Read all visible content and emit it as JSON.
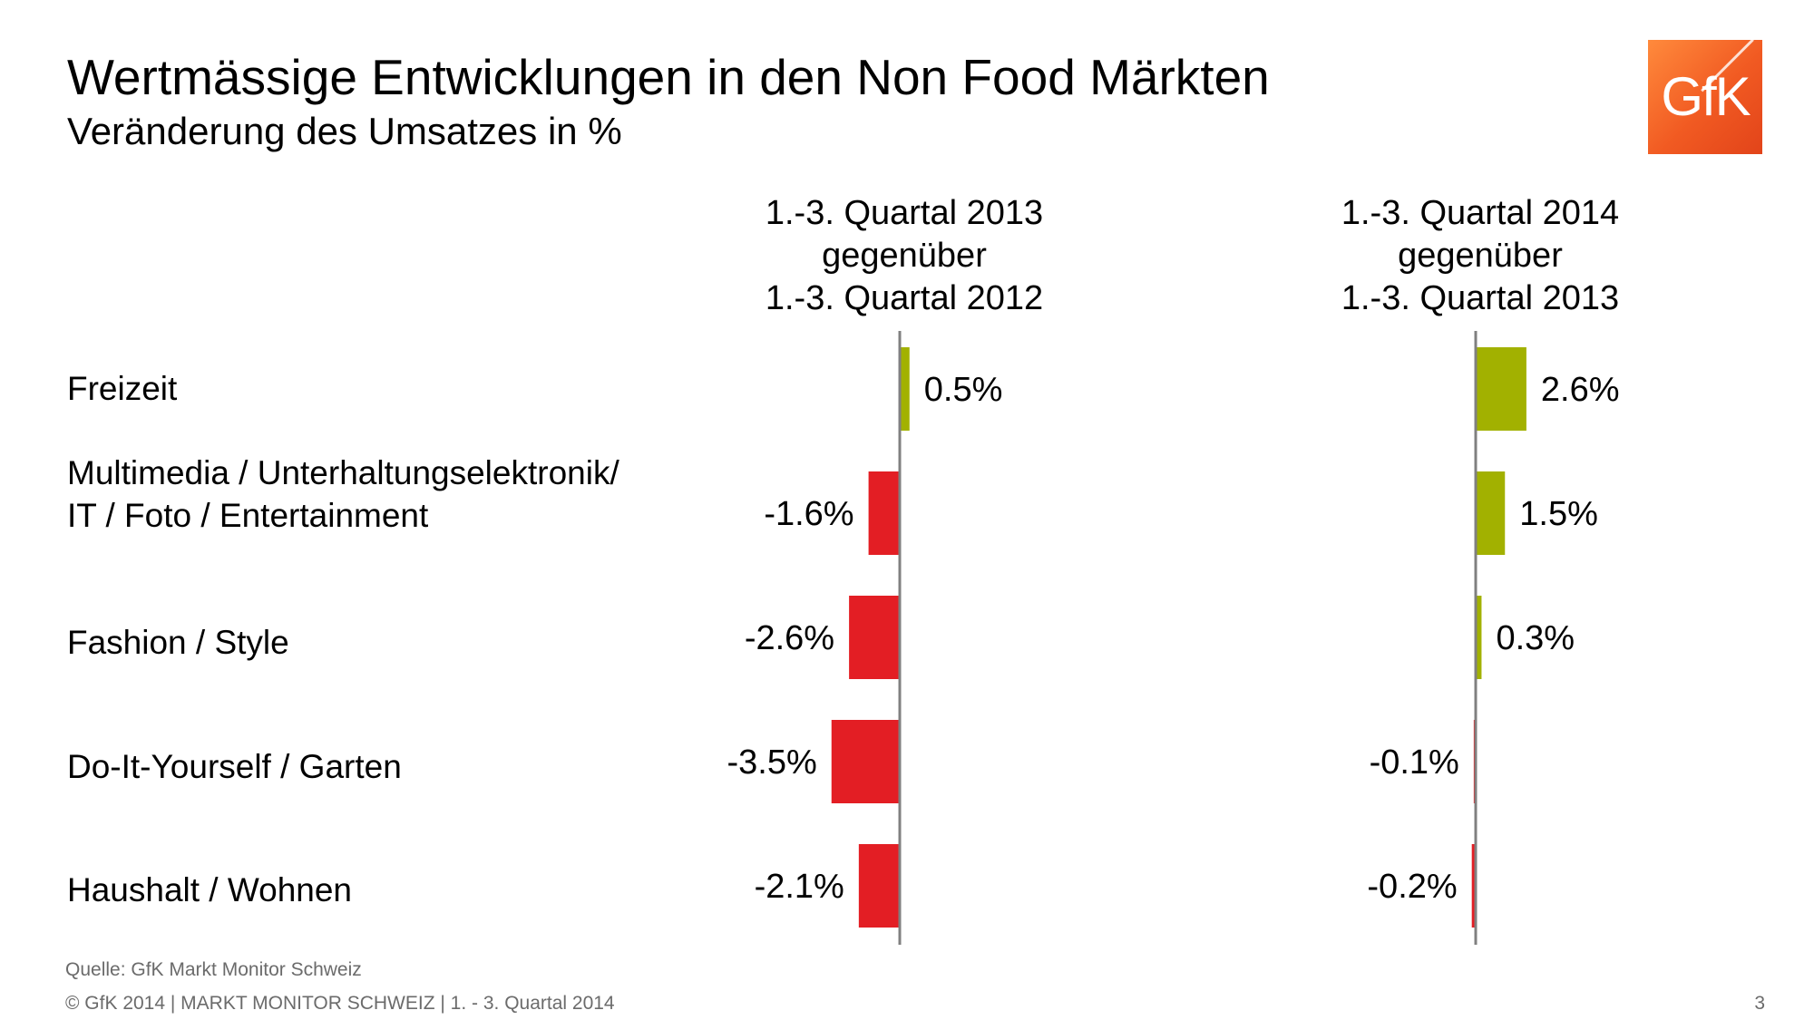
{
  "header": {
    "title": "Wertmässige Entwicklungen in den Non Food Märkten",
    "subtitle": "Veränderung des Umsatzes in %",
    "logo_text": "GfK"
  },
  "chart_data": {
    "type": "bar",
    "orientation": "horizontal",
    "categories": [
      [
        "Freizeit"
      ],
      [
        "Multimedia / Unterhaltungselektronik/",
        "IT / Foto / Entertainment"
      ],
      [
        "Fashion / Style"
      ],
      [
        "Do-It-Yourself / Garten"
      ],
      [
        "Haushalt / Wohnen"
      ]
    ],
    "series": [
      {
        "name": [
          "1.-3. Quartal 2013",
          "gegenüber",
          "1.-3. Quartal 2012"
        ],
        "values": [
          0.5,
          -1.6,
          -2.6,
          -3.5,
          -2.1
        ],
        "labels": [
          "0.5%",
          "-1.6%",
          "-2.6%",
          "-3.5%",
          "-2.1%"
        ]
      },
      {
        "name": [
          "1.-3. Quartal 2014",
          "gegenüber",
          "1.-3. Quartal 2013"
        ],
        "values": [
          2.6,
          1.5,
          0.3,
          -0.1,
          -0.2
        ],
        "labels": [
          "2.6%",
          "1.5%",
          "0.3%",
          "-0.1%",
          "-0.2%"
        ]
      }
    ],
    "colors": {
      "positive": "#a2b100",
      "negative": "#e31e24",
      "axis": "#808080"
    }
  },
  "footer": {
    "source": "Quelle: GfK Markt Monitor Schweiz",
    "copyright": "© GfK 2014 | MARKT MONITOR SCHWEIZ | 1. - 3. Quartal 2014",
    "page_number": "3"
  }
}
